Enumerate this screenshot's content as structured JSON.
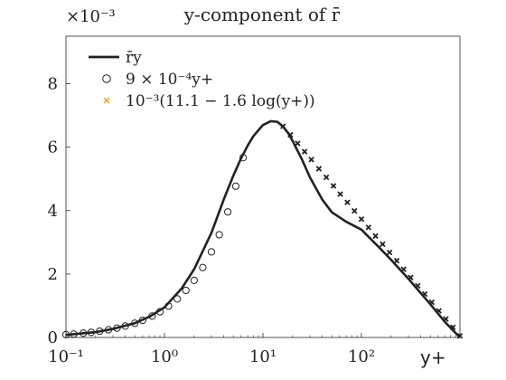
{
  "chart_data": {
    "type": "line",
    "title": "y-component of r̄",
    "xlabel": "y+",
    "ylabel": "",
    "y_multiplier": "×10⁻³",
    "x_scale": "log",
    "xlim": [
      0.1,
      1000
    ],
    "ylim": [
      0,
      9.5
    ],
    "x_ticks": [
      {
        "value": 0.1,
        "label": "10⁻¹"
      },
      {
        "value": 1,
        "label": "10⁰"
      },
      {
        "value": 10,
        "label": "10¹"
      },
      {
        "value": 100,
        "label": "10²"
      }
    ],
    "y_ticks": [
      {
        "value": 0,
        "label": "0"
      },
      {
        "value": 2,
        "label": "2"
      },
      {
        "value": 4,
        "label": "4"
      },
      {
        "value": 6,
        "label": "6"
      },
      {
        "value": 8,
        "label": "8"
      }
    ],
    "grid": false,
    "legend_position": "top-left",
    "series": [
      {
        "name": "r̄y",
        "type": "line",
        "color": "#222222",
        "x": [
          0.1,
          0.2,
          0.3,
          0.5,
          0.7,
          1.0,
          1.5,
          2.0,
          3.0,
          4.0,
          5.0,
          6.0,
          7.0,
          8.0,
          10.0,
          12.0,
          14.0,
          16.0,
          18.0,
          20.0,
          25.0,
          30.0,
          40.0,
          50.0,
          70.0,
          100.0,
          150.0,
          200.0,
          300.0,
          500.0,
          700.0,
          1000.0
        ],
        "y": [
          0.08,
          0.17,
          0.27,
          0.45,
          0.65,
          0.95,
          1.55,
          2.15,
          3.3,
          4.35,
          5.1,
          5.65,
          6.05,
          6.35,
          6.7,
          6.82,
          6.8,
          6.65,
          6.45,
          6.2,
          5.6,
          5.05,
          4.35,
          3.95,
          3.65,
          3.4,
          2.85,
          2.45,
          1.85,
          1.05,
          0.5,
          0.0
        ]
      },
      {
        "name": "9 × 10⁻⁴y+",
        "type": "scatter",
        "marker": "circle",
        "color": "#222222",
        "x": [
          0.1,
          0.12,
          0.15,
          0.18,
          0.22,
          0.27,
          0.33,
          0.4,
          0.5,
          0.6,
          0.75,
          0.9,
          1.1,
          1.35,
          1.65,
          2.0,
          2.45,
          3.0,
          3.6,
          4.4,
          5.3,
          6.3
        ],
        "y": [
          0.09,
          0.108,
          0.135,
          0.162,
          0.198,
          0.243,
          0.297,
          0.36,
          0.45,
          0.54,
          0.675,
          0.81,
          0.99,
          1.215,
          1.485,
          1.8,
          2.205,
          2.7,
          3.24,
          3.96,
          4.77,
          5.67
        ]
      },
      {
        "name": "10⁻³(11.1 − 1.6 log(y+))",
        "type": "scatter",
        "marker": "x",
        "color": "#222222",
        "legend_color": "#e8a020",
        "x": [
          16,
          19,
          22.5,
          26.5,
          31,
          37,
          44,
          52,
          61,
          72,
          85,
          100,
          118,
          139,
          164,
          193,
          228,
          268,
          316,
          373,
          440,
          518,
          611,
          720,
          849,
          1000
        ],
        "y": [
          6.66,
          6.39,
          6.12,
          5.86,
          5.61,
          5.32,
          5.05,
          4.78,
          4.52,
          4.26,
          3.99,
          3.73,
          3.47,
          3.2,
          2.94,
          2.68,
          2.42,
          2.15,
          1.89,
          1.63,
          1.37,
          1.11,
          0.84,
          0.58,
          0.32,
          0.05
        ]
      }
    ]
  }
}
